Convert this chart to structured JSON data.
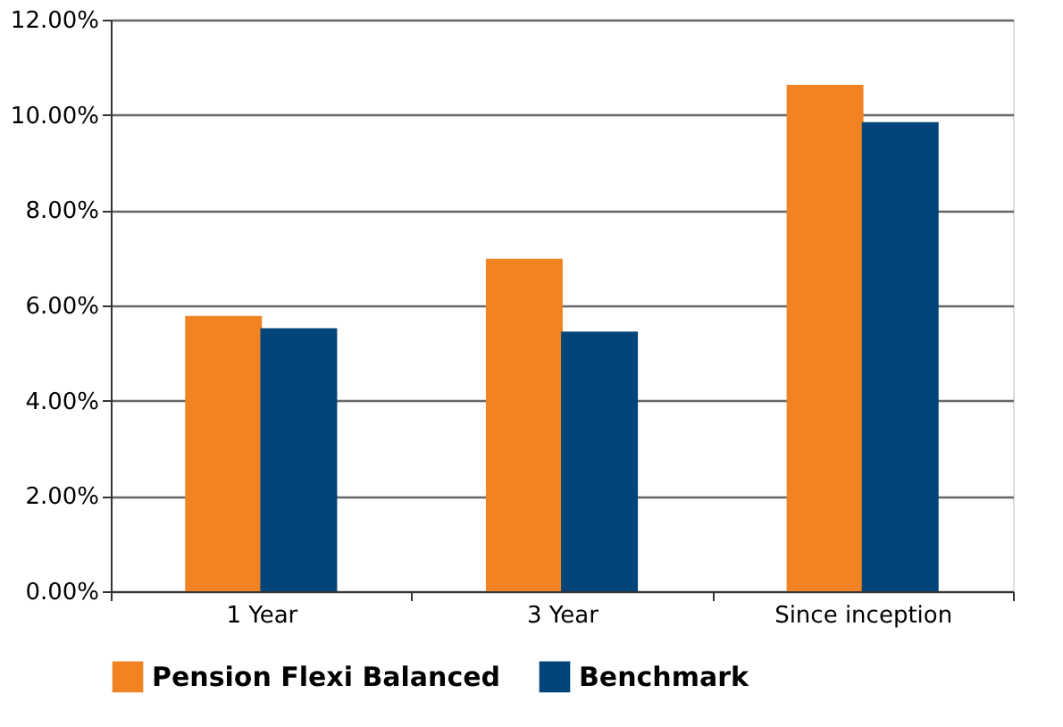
{
  "chart_data": {
    "type": "bar",
    "categories": [
      "1 Year",
      "3 Year",
      "Since inception"
    ],
    "series": [
      {
        "name": "Pension Flexi Balanced",
        "color": "#f28322",
        "values": [
          5.78,
          6.98,
          10.63
        ]
      },
      {
        "name": "Benchmark",
        "color": "#02457a",
        "values": [
          5.52,
          5.45,
          9.85
        ]
      }
    ],
    "ylim": [
      0,
      12
    ],
    "yticks": [
      {
        "value": 0,
        "label": "0.00%"
      },
      {
        "value": 2,
        "label": "2.00%"
      },
      {
        "value": 4,
        "label": "4.00%"
      },
      {
        "value": 6,
        "label": "6.00%"
      },
      {
        "value": 8,
        "label": "8.00%"
      },
      {
        "value": 10,
        "label": "10.00%"
      },
      {
        "value": 12,
        "label": "12.00%"
      }
    ],
    "grid": "y",
    "legend": "bottom"
  }
}
